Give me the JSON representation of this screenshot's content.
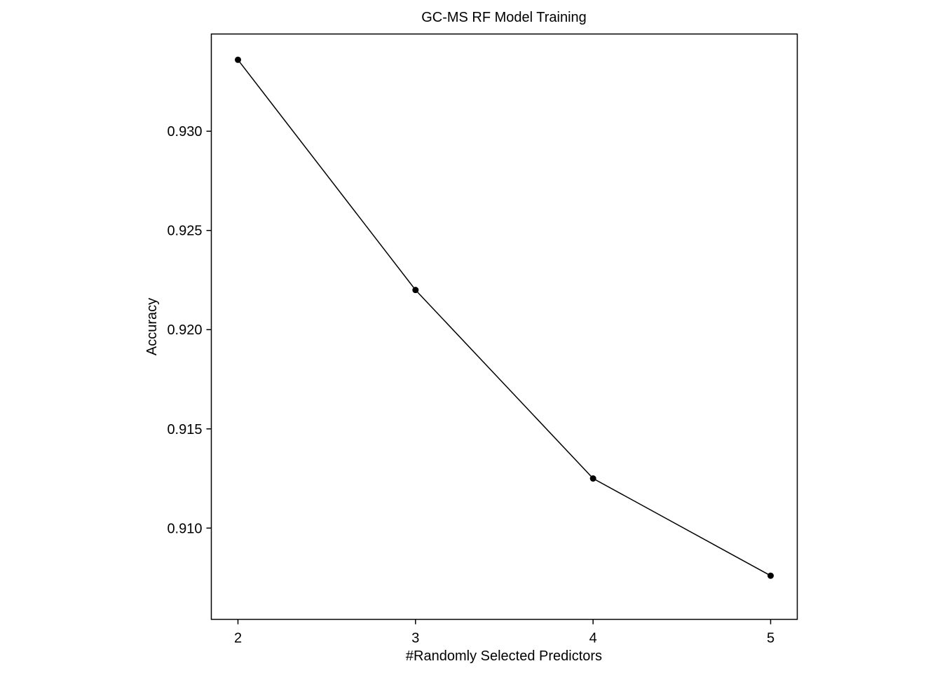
{
  "chart_data": {
    "type": "line",
    "title": "GC-MS RF Model Training",
    "xlabel": "#Randomly Selected Predictors",
    "ylabel": "Accuracy",
    "x": [
      2,
      3,
      4,
      5
    ],
    "series": [
      {
        "values": [
          0.9336,
          0.922,
          0.9125,
          0.9076
        ]
      }
    ],
    "xlim": [
      1.85,
      5.15
    ],
    "ylim": [
      0.9054,
      0.9349
    ],
    "xticks": [
      2,
      3,
      4,
      5
    ],
    "xtick_labels": [
      "2",
      "3",
      "4",
      "5"
    ],
    "yticks": [
      0.91,
      0.915,
      0.92,
      0.925,
      0.93
    ],
    "ytick_labels": [
      "0.910",
      "0.915",
      "0.920",
      "0.925",
      "0.930"
    ],
    "grid": false,
    "legend": "none",
    "colors": {
      "line": "#000000",
      "points": "#000000",
      "frame": "#000000"
    }
  }
}
